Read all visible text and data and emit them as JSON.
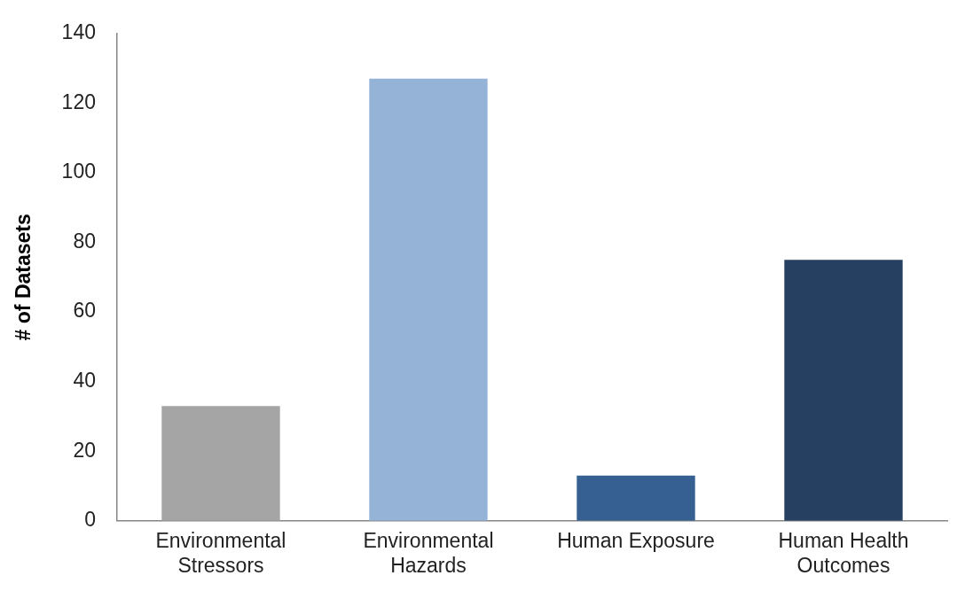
{
  "chart_data": {
    "type": "bar",
    "ylabel": "# of Datasets",
    "categories": [
      "Environmental Stressors",
      "Environmental Hazards",
      "Human Exposure",
      "Human Health Outcomes"
    ],
    "values": [
      33,
      127,
      13,
      75
    ],
    "colors": [
      "#a5a5a5",
      "#95b3d7",
      "#366092",
      "#254061"
    ],
    "ylim": [
      0,
      140
    ],
    "yticks": [
      0,
      20,
      40,
      60,
      80,
      100,
      120,
      140
    ],
    "grid": false,
    "legend": false
  }
}
